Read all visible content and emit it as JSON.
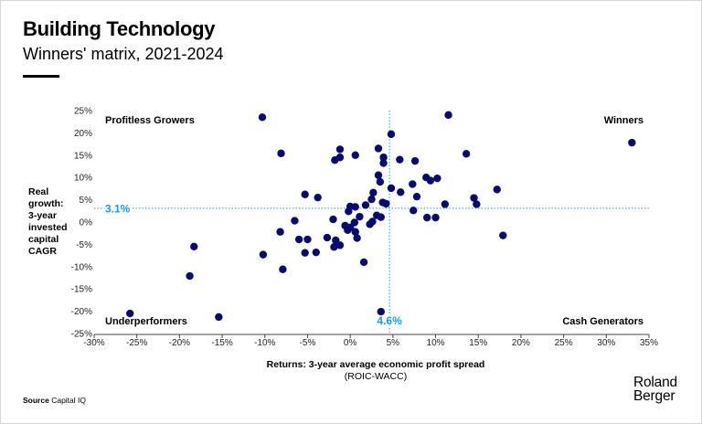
{
  "header": {
    "title": "Building Technology",
    "subtitle": "Winners' matrix, 2021-2024"
  },
  "axes": {
    "ylabel_lines": [
      "Real",
      "growth:",
      "3-year",
      "invested",
      "capital",
      "CAGR"
    ],
    "xlabel_bold": "Returns: 3-year average economic profit spread",
    "xlabel_sub": "(ROIC-WACC)"
  },
  "footer": {
    "source_label": "Source",
    "source_text": "Capital IQ",
    "logo_line1": "Roland",
    "logo_line2": "Berger"
  },
  "colors": {
    "point": "#0a0a6e",
    "reference_line": "#1e9be6",
    "axis_text": "#222222"
  },
  "chart_data": {
    "type": "scatter",
    "title": "Winners' matrix, 2021-2024",
    "xlabel": "Returns: 3-year average economic profit spread (ROIC-WACC)",
    "ylabel": "Real growth: 3-year invested capital CAGR",
    "xlim": [
      -30,
      35
    ],
    "ylim": [
      -25,
      25
    ],
    "x_ticks": [
      -30,
      -25,
      -20,
      -15,
      -10,
      -5,
      0,
      5,
      10,
      15,
      20,
      25,
      30,
      35
    ],
    "x_tick_labels": [
      "-30%",
      "-25%",
      "-20%",
      "-15%",
      "-10%",
      "-5%",
      "0%",
      "5%",
      "10%",
      "15%",
      "20%",
      "25%",
      "30%",
      "35%"
    ],
    "y_ticks": [
      25,
      20,
      15,
      10,
      5,
      0,
      -5,
      -10,
      -15,
      -20,
      -25
    ],
    "y_tick_labels": [
      "25%",
      "20%",
      "15%",
      "10%",
      "5%",
      "0%",
      "-5%",
      "-10%",
      "-15%",
      "-20%",
      "-25%"
    ],
    "reference_lines": {
      "x": 4.6,
      "x_label": "4.6%",
      "y": 3.1,
      "y_label": "3.1%"
    },
    "quadrant_labels": {
      "top_left": "Profitless Growers",
      "top_right": "Winners",
      "bottom_left": "Underperformers",
      "bottom_right": "Cash Generators"
    },
    "grid": false,
    "points": [
      {
        "x": -10.3,
        "y": 23.5
      },
      {
        "x": 11.5,
        "y": 24.0
      },
      {
        "x": 33.0,
        "y": 17.8
      },
      {
        "x": 4.8,
        "y": 19.7
      },
      {
        "x": 3.3,
        "y": 16.5
      },
      {
        "x": -1.2,
        "y": 16.3
      },
      {
        "x": -8.1,
        "y": 15.4
      },
      {
        "x": 0.6,
        "y": 15.0
      },
      {
        "x": -1.2,
        "y": 14.5
      },
      {
        "x": -1.8,
        "y": 13.9
      },
      {
        "x": 3.9,
        "y": 14.5
      },
      {
        "x": 5.8,
        "y": 14.0
      },
      {
        "x": 7.6,
        "y": 13.7
      },
      {
        "x": 3.9,
        "y": 13.2
      },
      {
        "x": 13.6,
        "y": 15.3
      },
      {
        "x": 3.3,
        "y": 10.5
      },
      {
        "x": 8.9,
        "y": 10.0
      },
      {
        "x": 9.4,
        "y": 9.3
      },
      {
        "x": 10.2,
        "y": 9.8
      },
      {
        "x": 3.5,
        "y": 9.0
      },
      {
        "x": 7.3,
        "y": 8.5
      },
      {
        "x": 4.8,
        "y": 7.6
      },
      {
        "x": 5.9,
        "y": 6.7
      },
      {
        "x": 17.2,
        "y": 7.3
      },
      {
        "x": 2.7,
        "y": 6.6
      },
      {
        "x": -5.3,
        "y": 6.2
      },
      {
        "x": -3.8,
        "y": 5.5
      },
      {
        "x": 2.5,
        "y": 5.1
      },
      {
        "x": 7.8,
        "y": 5.7
      },
      {
        "x": 14.5,
        "y": 5.4
      },
      {
        "x": 14.8,
        "y": 4.0
      },
      {
        "x": 3.8,
        "y": 4.4
      },
      {
        "x": 4.2,
        "y": 4.1
      },
      {
        "x": 11.1,
        "y": 4.0
      },
      {
        "x": 1.8,
        "y": 3.8
      },
      {
        "x": 0.6,
        "y": 3.4
      },
      {
        "x": 0.0,
        "y": 3.5
      },
      {
        "x": -0.2,
        "y": 2.4
      },
      {
        "x": 7.4,
        "y": 2.6
      },
      {
        "x": 3.1,
        "y": 1.5
      },
      {
        "x": 3.6,
        "y": 1.1
      },
      {
        "x": 1.1,
        "y": 1.2
      },
      {
        "x": -2.0,
        "y": 0.6
      },
      {
        "x": -6.5,
        "y": 0.3
      },
      {
        "x": 2.6,
        "y": 0.1
      },
      {
        "x": 0.5,
        "y": -0.1
      },
      {
        "x": 9.0,
        "y": 1.0
      },
      {
        "x": 10.0,
        "y": 1.0
      },
      {
        "x": -0.6,
        "y": -0.8
      },
      {
        "x": 0.0,
        "y": -1.2
      },
      {
        "x": 2.3,
        "y": -0.5
      },
      {
        "x": -0.3,
        "y": -1.8
      },
      {
        "x": 0.6,
        "y": -2.2
      },
      {
        "x": -8.2,
        "y": -2.2
      },
      {
        "x": 0.8,
        "y": -3.6
      },
      {
        "x": 17.9,
        "y": -3.0
      },
      {
        "x": -6.0,
        "y": -3.9
      },
      {
        "x": -5.0,
        "y": -3.9
      },
      {
        "x": -2.7,
        "y": -3.5
      },
      {
        "x": -1.7,
        "y": -4.1
      },
      {
        "x": -1.2,
        "y": -5.2
      },
      {
        "x": -1.9,
        "y": -5.6
      },
      {
        "x": -18.3,
        "y": -5.5
      },
      {
        "x": -5.3,
        "y": -6.9
      },
      {
        "x": -4.0,
        "y": -6.8
      },
      {
        "x": -10.2,
        "y": -7.3
      },
      {
        "x": 1.6,
        "y": -9.0
      },
      {
        "x": -7.9,
        "y": -10.6
      },
      {
        "x": -18.8,
        "y": -12.1
      },
      {
        "x": 3.6,
        "y": -20.1
      },
      {
        "x": -25.8,
        "y": -20.5
      },
      {
        "x": -15.4,
        "y": -21.3
      }
    ]
  }
}
